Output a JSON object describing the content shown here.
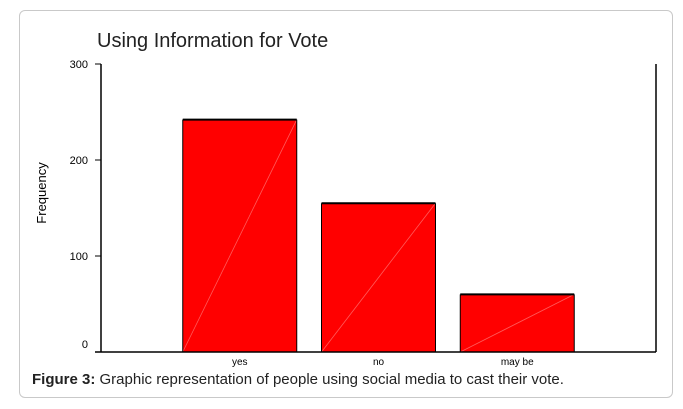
{
  "chart_data": {
    "type": "bar",
    "title": "Using Information for Vote",
    "xlabel": "",
    "ylabel": "Frequency",
    "categories": [
      "yes",
      "no",
      "may be"
    ],
    "values": [
      242,
      155,
      60
    ],
    "ylim": [
      0,
      300
    ],
    "yticks": [
      0,
      100,
      200,
      300
    ],
    "grid": false,
    "bar_color": "#ff0000",
    "bar_edge_color": "#000000"
  },
  "caption": {
    "label": "Figure 3:",
    "text": "Graphic representation of people using social media to cast their vote."
  }
}
